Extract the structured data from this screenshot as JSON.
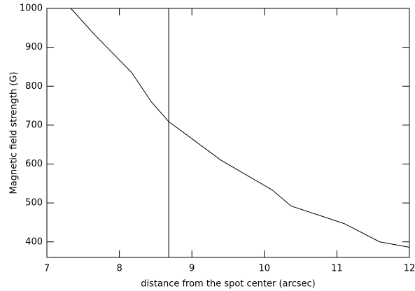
{
  "chart_data": {
    "type": "line",
    "xlabel": "distance from the spot center (arcsec)",
    "ylabel": "Magnetic field strength (G)",
    "x": [
      7.33,
      7.66,
      8.17,
      8.44,
      8.68,
      9.4,
      10.11,
      10.37,
      11.1,
      11.59,
      12.0
    ],
    "series": [
      {
        "color": "#000000",
        "values": [
          1000,
          932,
          835,
          760,
          709,
          610,
          533,
          492,
          447,
          400,
          386
        ]
      }
    ],
    "vline": 8.68,
    "xlim": [
      7,
      12
    ],
    "xticks": [
      7,
      8,
      9,
      10,
      11,
      12
    ],
    "ylim": [
      360,
      1000
    ],
    "yticks": [
      400,
      500,
      600,
      700,
      800,
      900,
      1000
    ],
    "grid": false
  }
}
